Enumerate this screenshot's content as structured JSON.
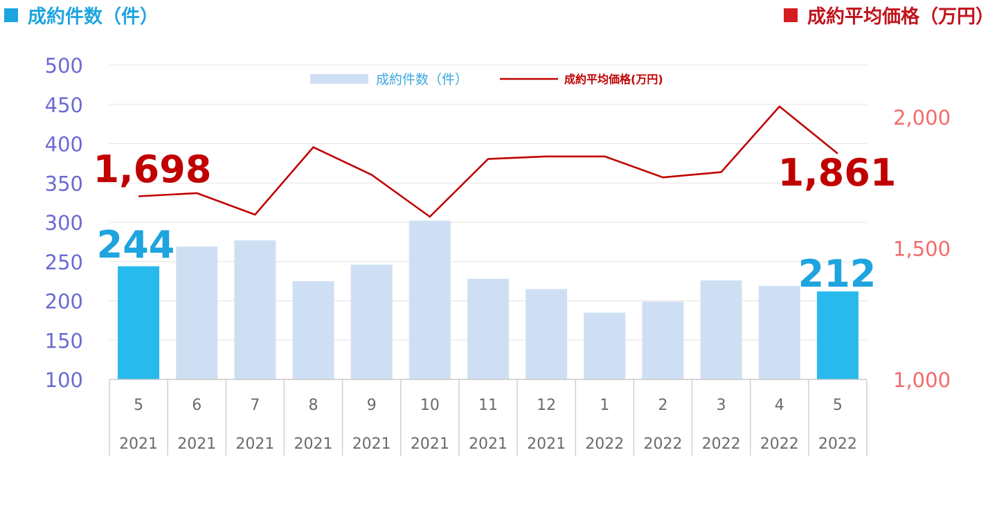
{
  "chart_data": {
    "type": "bar",
    "categories": [
      "5",
      "6",
      "7",
      "8",
      "9",
      "10",
      "11",
      "12",
      "1",
      "2",
      "3",
      "4",
      "5"
    ],
    "category_years": [
      "2021",
      "2021",
      "2021",
      "2021",
      "2021",
      "2021",
      "2021",
      "2021",
      "2022",
      "2022",
      "2022",
      "2022",
      "2022"
    ],
    "series": [
      {
        "name": "成約件数（件）",
        "type": "bar",
        "axis": "left",
        "values": [
          244,
          269,
          277,
          225,
          246,
          302,
          228,
          215,
          185,
          199,
          226,
          219,
          212
        ],
        "color": "#cfdff3",
        "highlight_color": "#29baed",
        "highlight_indices": [
          0,
          12
        ]
      },
      {
        "name": "成約平均価格(万円)",
        "type": "line",
        "axis": "right",
        "values": [
          1698,
          1710,
          1628,
          1885,
          1780,
          1620,
          1840,
          1850,
          1850,
          1770,
          1790,
          2040,
          1861
        ],
        "color": "#c00000"
      }
    ],
    "y_left": {
      "range": [
        100,
        500
      ],
      "ticks": [
        "100",
        "150",
        "200",
        "250",
        "300",
        "350",
        "400",
        "450",
        "500"
      ],
      "color": "#6b6bd3"
    },
    "y_right": {
      "range": [
        1000,
        2200
      ],
      "ticks": [
        "1,000",
        "1,500",
        "2,000"
      ],
      "color": "#f26b6b"
    },
    "annotations": [
      {
        "text": "244",
        "series": 0,
        "index": 0,
        "color": "#1ea4df"
      },
      {
        "text": "212",
        "series": 0,
        "index": 12,
        "color": "#1ea4df"
      },
      {
        "text": "1,698",
        "series": 1,
        "index": 0,
        "color": "#c00000"
      },
      {
        "text": "1,861",
        "series": 1,
        "index": 12,
        "color": "#c00000"
      }
    ],
    "legend": {
      "position": "top-center",
      "items": [
        {
          "label": "成約件数（件）",
          "color": "#cfdff3",
          "text_color": "#3aa6e0"
        },
        {
          "label": "成約平均価格(万円)",
          "color": "#c00000",
          "text_color": "#c00000"
        }
      ]
    },
    "grid": true
  },
  "header": {
    "left_title": "成約件数（件）",
    "right_title": "成約平均価格（万円）"
  }
}
